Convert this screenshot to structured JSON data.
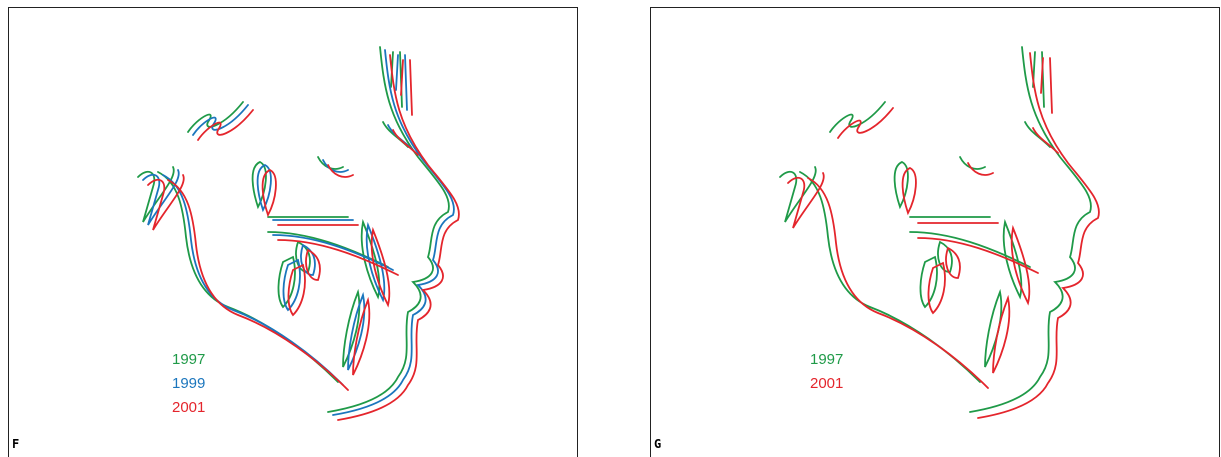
{
  "panels": [
    {
      "label": "F",
      "legend": [
        {
          "text": "1997",
          "color": "#1f9a48"
        },
        {
          "text": "1999",
          "color": "#1b76bd"
        },
        {
          "text": "2001",
          "color": "#e4252c"
        }
      ]
    },
    {
      "label": "G",
      "legend": [
        {
          "text": "1997",
          "color": "#1f9a48"
        },
        {
          "text": "2001",
          "color": "#e4252c"
        }
      ]
    }
  ]
}
